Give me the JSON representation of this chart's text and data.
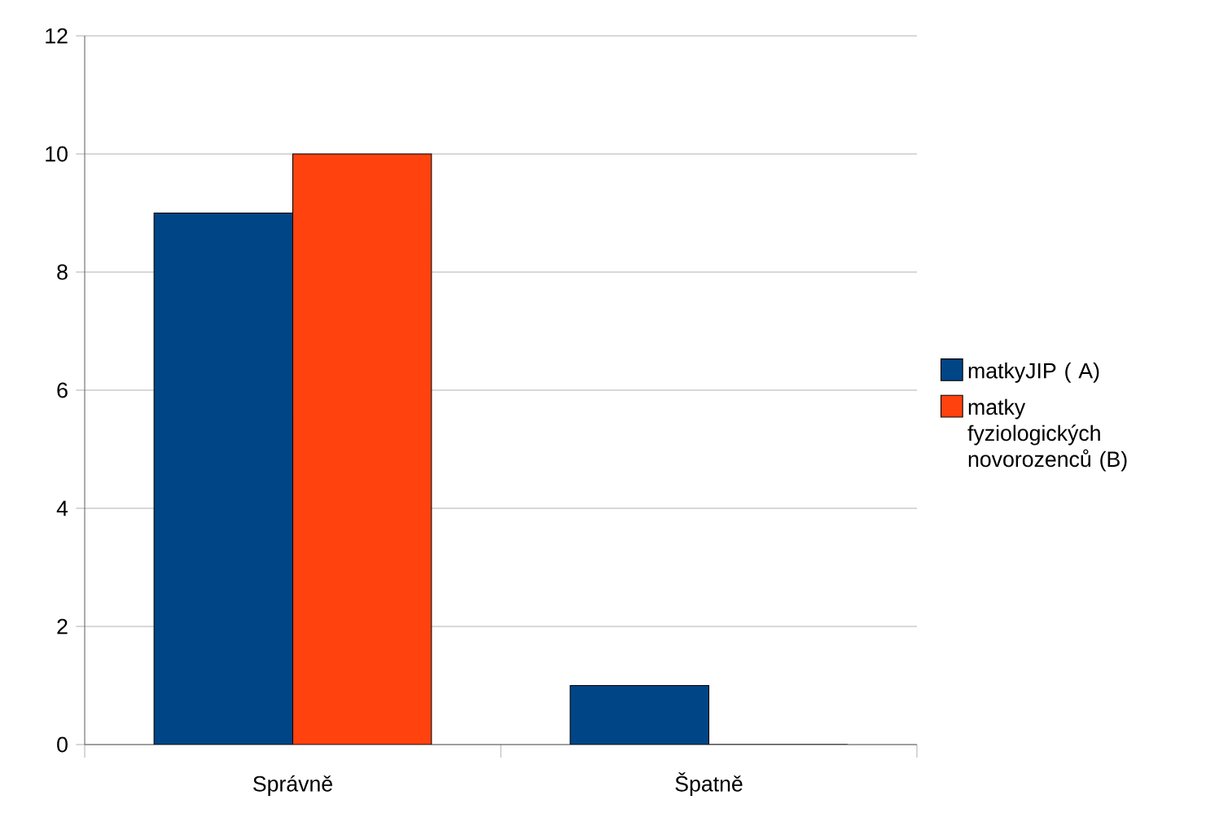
{
  "chart_data": {
    "type": "bar",
    "categories": [
      "Správně",
      "Špatně"
    ],
    "series": [
      {
        "name": "matkyJIP ( A)",
        "color": "#004586",
        "values": [
          9,
          1
        ]
      },
      {
        "name": "matky fyziologických novorozenců (B)",
        "color": "#ff420e",
        "values": [
          10,
          0
        ]
      }
    ],
    "ylim": [
      0,
      12
    ],
    "yticks": [
      0,
      2,
      4,
      6,
      8,
      10,
      12
    ],
    "grid": "y",
    "legend": "right"
  }
}
